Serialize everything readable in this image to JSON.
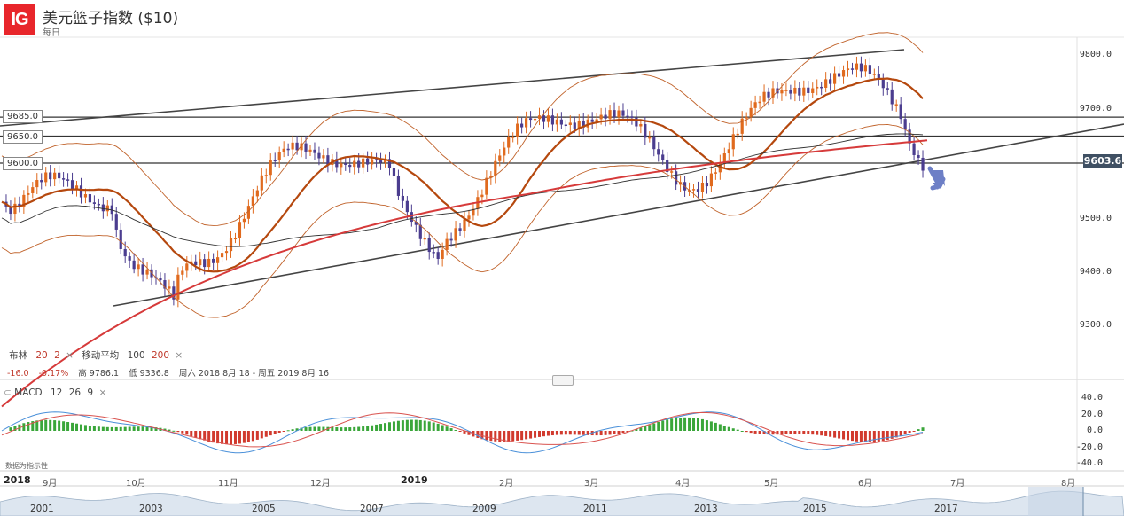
{
  "header": {
    "logo": "IG",
    "title": "美元篮子指数 ($10)",
    "subtitle": "每日"
  },
  "price_axis": {
    "labels": [
      "9800.0",
      "9700.0",
      "9600.0",
      "9500.0",
      "9400.0",
      "9300.0"
    ],
    "current_price": "9603.6"
  },
  "levels": [
    "9685.0",
    "9650.0",
    "9600.0"
  ],
  "indicators": {
    "bollinger_label": "布林",
    "bollinger_period": "20",
    "bollinger_dev": "2",
    "ma_label": "移动平均",
    "ma_fast": "100",
    "ma_slow": "200",
    "close_symbol": "×"
  },
  "stats": {
    "change": "-16.0",
    "change_pct": "-0.17%",
    "high": "高 9786.1",
    "low": "低 9336.8",
    "range": "周六 2018 8月 18 - 周五 2019 8月 16"
  },
  "macd": {
    "label": "MACD",
    "fast": "12",
    "slow": "26",
    "signal": "9",
    "close_symbol": "×",
    "axis_labels": [
      "40.0",
      "20.0",
      "0.0",
      "-20.0",
      "-40.0"
    ],
    "note": "数据为指示性"
  },
  "time_axis": {
    "year_start": "2018",
    "year_mid": "2019",
    "months": [
      "9月",
      "10月",
      "11月",
      "12月",
      "2月",
      "3月",
      "4月",
      "5月",
      "6月",
      "7月",
      "8月"
    ]
  },
  "navigator": {
    "years": [
      "2001",
      "2003",
      "2005",
      "2007",
      "2009",
      "2011",
      "2013",
      "2015",
      "2017"
    ]
  },
  "colors": {
    "bull": "#e06a1e",
    "bear": "#4b3d8f",
    "ma100": "#b5480e",
    "ma200": "#d63a3a",
    "macd_up": "#3aa63a",
    "macd_down": "#d13a2e",
    "arrow": "#6d7fc6"
  }
}
